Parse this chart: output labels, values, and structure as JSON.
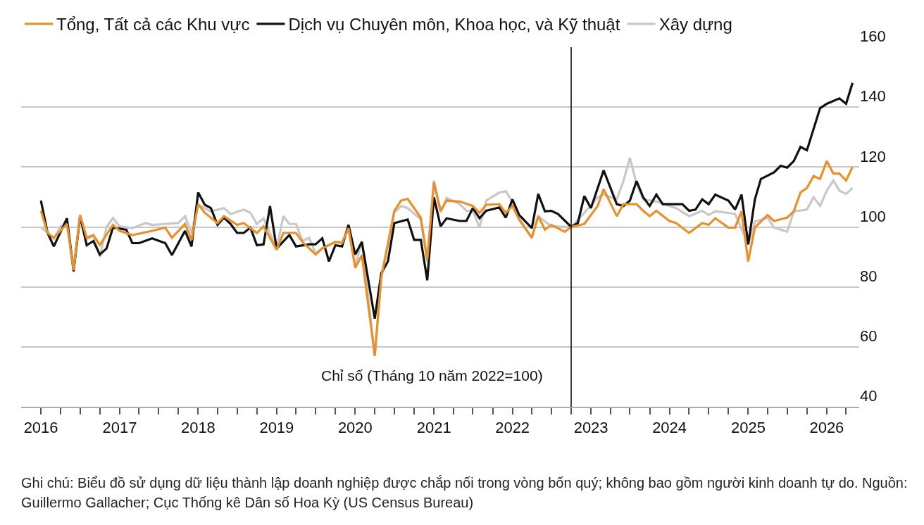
{
  "chart_data": {
    "type": "line",
    "ylabel": "Chỉ số (Tháng 10 năm 2022=100)",
    "annotations": [
      "Ghi chú: Biểu đồ sử dụng dữ liệu thành lập doanh nghiệp được chắp nối trong vòng bốn quý; không bao gồm người kinh doanh tự do. Nguồn: Guillermo Gallacher; Cục Thống kê Dân số Hoa Kỳ (US Census Bureau)"
    ],
    "legend": "top",
    "grid": "y",
    "xlim": [
      "2015-10",
      "2026-06"
    ],
    "xticks": [
      {
        "value": "2016-01",
        "label": "2016"
      },
      {
        "value": "2016-04",
        "label": null
      },
      {
        "value": "2016-07",
        "label": null
      },
      {
        "value": "2016-10",
        "label": null
      },
      {
        "value": "2017-01",
        "label": "2017"
      },
      {
        "value": "2017-04",
        "label": null
      },
      {
        "value": "2017-07",
        "label": null
      },
      {
        "value": "2017-10",
        "label": null
      },
      {
        "value": "2018-01",
        "label": "2018"
      },
      {
        "value": "2018-04",
        "label": null
      },
      {
        "value": "2018-07",
        "label": null
      },
      {
        "value": "2018-10",
        "label": null
      },
      {
        "value": "2019-01",
        "label": "2019"
      },
      {
        "value": "2019-04",
        "label": null
      },
      {
        "value": "2019-07",
        "label": null
      },
      {
        "value": "2019-10",
        "label": null
      },
      {
        "value": "2020-01",
        "label": "2020"
      },
      {
        "value": "2020-04",
        "label": null
      },
      {
        "value": "2020-07",
        "label": null
      },
      {
        "value": "2020-10",
        "label": null
      },
      {
        "value": "2021-01",
        "label": "2021"
      },
      {
        "value": "2021-04",
        "label": null
      },
      {
        "value": "2021-07",
        "label": null
      },
      {
        "value": "2021-10",
        "label": null
      },
      {
        "value": "2022-01",
        "label": "2022"
      },
      {
        "value": "2022-04",
        "label": null
      },
      {
        "value": "2022-07",
        "label": null
      },
      {
        "value": "2022-10",
        "label": null
      },
      {
        "value": "2023-01",
        "label": "2023"
      },
      {
        "value": "2023-04",
        "label": null
      },
      {
        "value": "2023-07",
        "label": null
      },
      {
        "value": "2023-10",
        "label": null
      },
      {
        "value": "2024-01",
        "label": "2024"
      },
      {
        "value": "2024-04",
        "label": null
      },
      {
        "value": "2024-07",
        "label": null
      },
      {
        "value": "2024-10",
        "label": null
      },
      {
        "value": "2025-01",
        "label": "2025"
      },
      {
        "value": "2025-04",
        "label": null
      },
      {
        "value": "2025-07",
        "label": null
      },
      {
        "value": "2025-10",
        "label": null
      },
      {
        "value": "2026-01",
        "label": "2026"
      },
      {
        "value": "2026-04",
        "label": null
      }
    ],
    "ylim": [
      40,
      160
    ],
    "yticks": [
      40,
      60,
      80,
      100,
      120,
      140,
      160
    ],
    "ref_lines": [
      {
        "axis": "x",
        "value": "2022-10",
        "color": "#000000"
      }
    ],
    "series": [
      {
        "name": "Tổng, Tất cả các Khu vực",
        "color": "#e8912c",
        "x": [
          "2016-01",
          "2016-02",
          "2016-03",
          "2016-05",
          "2016-06",
          "2016-07",
          "2016-08",
          "2016-09",
          "2016-10",
          "2016-12",
          "2017-01",
          "2017-03",
          "2017-06",
          "2017-08",
          "2017-09",
          "2017-11",
          "2017-12",
          "2018-01",
          "2018-02",
          "2018-04",
          "2018-05",
          "2018-07",
          "2018-08",
          "2018-10",
          "2018-11",
          "2019-01",
          "2019-02",
          "2019-04",
          "2019-05",
          "2019-07",
          "2019-08",
          "2019-10",
          "2019-11",
          "2019-12",
          "2020-01",
          "2020-02",
          "2020-04",
          "2020-05",
          "2020-07",
          "2020-08",
          "2020-09",
          "2020-11",
          "2020-12",
          "2021-01",
          "2021-02",
          "2021-03",
          "2021-05",
          "2021-07",
          "2021-08",
          "2021-09",
          "2021-11",
          "2021-12",
          "2022-01",
          "2022-02",
          "2022-04",
          "2022-05",
          "2022-06",
          "2022-07",
          "2022-09",
          "2022-10",
          "2022-12",
          "2023-02",
          "2023-03",
          "2023-05",
          "2023-06",
          "2023-08",
          "2023-09",
          "2023-10",
          "2023-11",
          "2024-01",
          "2024-02",
          "2024-04",
          "2024-06",
          "2024-07",
          "2024-08",
          "2024-10",
          "2024-11",
          "2024-12",
          "2025-01",
          "2025-02",
          "2025-04",
          "2025-05",
          "2025-07",
          "2025-08",
          "2025-09",
          "2025-10",
          "2025-11",
          "2025-12",
          "2026-01",
          "2026-02",
          "2026-03",
          "2026-04",
          "2026-05"
        ],
        "values": [
          105.4,
          98,
          96.4,
          101,
          85.6,
          104,
          96.4,
          97.3,
          94,
          100.7,
          98.7,
          97.3,
          98.7,
          99.8,
          96.4,
          101,
          95.7,
          107.6,
          104.7,
          101.3,
          103.6,
          100.7,
          101.3,
          98,
          100.2,
          92.4,
          98,
          98,
          95,
          90.8,
          92.8,
          95,
          94.6,
          99.6,
          86.3,
          90.6,
          57,
          83,
          105.4,
          108.8,
          109.4,
          103.1,
          89,
          114.8,
          105.4,
          108.8,
          108.5,
          107,
          104.7,
          107.4,
          107.6,
          104.7,
          107,
          102.5,
          96.4,
          103.6,
          99.1,
          100.7,
          98.4,
          100,
          101,
          107,
          112.6,
          103.6,
          107.6,
          107.6,
          105.4,
          103.6,
          105.4,
          102,
          101.3,
          98,
          101.3,
          100.7,
          102.9,
          99.8,
          99.8,
          105.2,
          88.5,
          99.8,
          104,
          102,
          103.1,
          105.2,
          111.5,
          113,
          117,
          116,
          122,
          117.8,
          117.8,
          115.5,
          120
        ]
      },
      {
        "name": "Dịch vụ Chuyên môn, Khoa học, và Kỹ thuật",
        "color": "#111111",
        "x": [
          "2016-01",
          "2016-02",
          "2016-03",
          "2016-05",
          "2016-06",
          "2016-07",
          "2016-08",
          "2016-09",
          "2016-10",
          "2016-11",
          "2016-12",
          "2017-02",
          "2017-03",
          "2017-04",
          "2017-06",
          "2017-08",
          "2017-09",
          "2017-11",
          "2017-12",
          "2018-01",
          "2018-02",
          "2018-03",
          "2018-04",
          "2018-05",
          "2018-06",
          "2018-07",
          "2018-08",
          "2018-09",
          "2018-10",
          "2018-11",
          "2018-12",
          "2019-01",
          "2019-03",
          "2019-04",
          "2019-06",
          "2019-07",
          "2019-08",
          "2019-09",
          "2019-10",
          "2019-11",
          "2019-12",
          "2020-01",
          "2020-02",
          "2020-04",
          "2020-05",
          "2020-06",
          "2020-07",
          "2020-09",
          "2020-10",
          "2020-11",
          "2020-12",
          "2021-01",
          "2021-02",
          "2021-03",
          "2021-05",
          "2021-06",
          "2021-07",
          "2021-08",
          "2021-09",
          "2021-11",
          "2021-12",
          "2022-01",
          "2022-02",
          "2022-04",
          "2022-05",
          "2022-06",
          "2022-07",
          "2022-08",
          "2022-10",
          "2022-11",
          "2022-12",
          "2023-01",
          "2023-03",
          "2023-05",
          "2023-06",
          "2023-07",
          "2023-08",
          "2023-09",
          "2023-10",
          "2023-11",
          "2023-12",
          "2024-03",
          "2024-04",
          "2024-05",
          "2024-06",
          "2024-07",
          "2024-08",
          "2024-10",
          "2024-11",
          "2024-12",
          "2025-01",
          "2025-02",
          "2025-03",
          "2025-05",
          "2025-06",
          "2025-07",
          "2025-08",
          "2025-09",
          "2025-10",
          "2025-12",
          "2026-01",
          "2026-03",
          "2026-04",
          "2026-05"
        ],
        "values": [
          108.8,
          98,
          93.5,
          102.9,
          85.2,
          103.6,
          93.9,
          95.3,
          90.8,
          92.8,
          99.8,
          99.1,
          94.6,
          94.6,
          96.2,
          94.6,
          90.6,
          98.7,
          93.5,
          111.5,
          107.4,
          106.3,
          100.7,
          103.1,
          101,
          98,
          98,
          99.8,
          93.9,
          94.2,
          107,
          92.8,
          97.3,
          93.5,
          94.2,
          94.2,
          96.2,
          88.5,
          93.9,
          93.5,
          100.7,
          90.8,
          95,
          69.4,
          84.5,
          88.5,
          101.3,
          102.5,
          95.7,
          95.7,
          82.2,
          109.9,
          100.2,
          102.9,
          102,
          102,
          106.3,
          102.9,
          105.4,
          106.5,
          103.1,
          109.2,
          104,
          99.6,
          111,
          105.2,
          105.4,
          104.3,
          100,
          101.3,
          110.3,
          106.3,
          118.9,
          107.6,
          107,
          108.8,
          115.3,
          109.9,
          107,
          110.8,
          107.6,
          107.6,
          105.4,
          105.8,
          109.2,
          107.6,
          110.8,
          108.8,
          105.8,
          110.8,
          94.2,
          109.2,
          116,
          118.2,
          120.4,
          119.8,
          122,
          126.7,
          125.6,
          139.6,
          141.1,
          142.9,
          141.1,
          148.1
        ]
      },
      {
        "name": "Xây dựng",
        "color": "#c8c8c8",
        "x": [
          "2016-01",
          "2016-02",
          "2016-03",
          "2016-04",
          "2016-05",
          "2016-06",
          "2016-07",
          "2016-08",
          "2016-09",
          "2016-10",
          "2016-11",
          "2016-12",
          "2017-01",
          "2017-03",
          "2017-05",
          "2017-06",
          "2017-08",
          "2017-10",
          "2017-11",
          "2017-12",
          "2018-01",
          "2018-03",
          "2018-05",
          "2018-06",
          "2018-08",
          "2018-09",
          "2018-10",
          "2018-11",
          "2019-01",
          "2019-02",
          "2019-03",
          "2019-04",
          "2019-05",
          "2019-06",
          "2019-07",
          "2019-08",
          "2019-10",
          "2019-11",
          "2019-12",
          "2020-01",
          "2020-02",
          "2020-04",
          "2020-05",
          "2020-07",
          "2020-08",
          "2020-09",
          "2020-11",
          "2020-12",
          "2021-01",
          "2021-02",
          "2021-03",
          "2021-05",
          "2021-06",
          "2021-07",
          "2021-08",
          "2021-09",
          "2021-11",
          "2021-12",
          "2022-01",
          "2022-02",
          "2022-04",
          "2022-05",
          "2022-07",
          "2022-10",
          "2022-12",
          "2023-02",
          "2023-03",
          "2023-05",
          "2023-06",
          "2023-07",
          "2023-08",
          "2023-09",
          "2023-11",
          "2024-01",
          "2024-02",
          "2024-04",
          "2024-06",
          "2024-07",
          "2024-08",
          "2024-10",
          "2024-11",
          "2025-01",
          "2025-02",
          "2025-04",
          "2025-05",
          "2025-07",
          "2025-08",
          "2025-10",
          "2025-11",
          "2025-12",
          "2026-01",
          "2026-02",
          "2026-03",
          "2026-04",
          "2026-05"
        ],
        "values": [
          100,
          98,
          96,
          100.2,
          101,
          86,
          103,
          96,
          97,
          90,
          100,
          103,
          100.2,
          99.6,
          101.3,
          100.7,
          101,
          101.3,
          103.6,
          98,
          107.4,
          105.2,
          106.3,
          104.3,
          105.8,
          104.7,
          101,
          102.9,
          92.8,
          103.6,
          101,
          101,
          95.3,
          96.4,
          91.2,
          93,
          95,
          95,
          99.6,
          87,
          95.3,
          57,
          83,
          104.7,
          107,
          106.3,
          102.5,
          88.5,
          115.5,
          104.7,
          109.7,
          107.6,
          105.4,
          105.4,
          99.8,
          108.8,
          111.5,
          111.9,
          108.5,
          102.9,
          96.4,
          103.6,
          100.2,
          100,
          104.7,
          109.9,
          110.8,
          109.2,
          115.3,
          123.1,
          114.4,
          109.2,
          108.5,
          107,
          106.3,
          103.6,
          105.4,
          104,
          105.2,
          104.7,
          104.3,
          94.2,
          101.8,
          103.1,
          99.8,
          98.4,
          105.2,
          105.8,
          109.9,
          107,
          112.1,
          115.5,
          112.1,
          111,
          113
        ]
      }
    ]
  }
}
